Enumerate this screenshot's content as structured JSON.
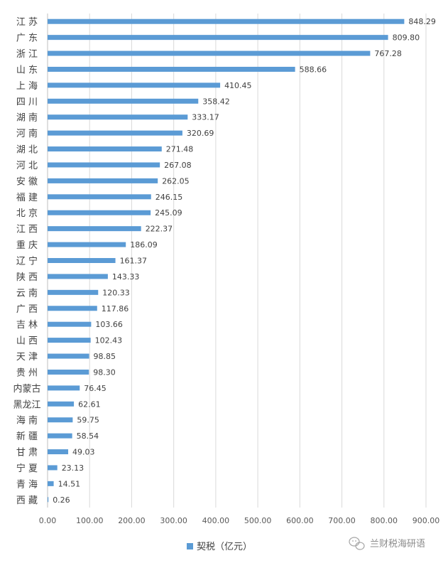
{
  "chart_data": {
    "type": "bar",
    "orientation": "horizontal",
    "categories": [
      "江 苏",
      "广 东",
      "浙 江",
      "山 东",
      "上 海",
      "四 川",
      "湖 南",
      "河 南",
      "湖 北",
      "河 北",
      "安 徽",
      "福 建",
      "北 京",
      "江 西",
      "重 庆",
      "辽 宁",
      "陕 西",
      "云 南",
      "广 西",
      "吉 林",
      "山 西",
      "天 津",
      "贵 州",
      "内蒙古",
      "黑龙江",
      "海 南",
      "新 疆",
      "甘 肃",
      "宁 夏",
      "青 海",
      "西 藏"
    ],
    "series": [
      {
        "name": "契税（亿元）",
        "values": [
          848.29,
          809.8,
          767.28,
          588.66,
          410.45,
          358.42,
          333.17,
          320.69,
          271.48,
          267.08,
          262.05,
          246.15,
          245.09,
          222.37,
          186.09,
          161.37,
          143.33,
          120.33,
          117.86,
          103.66,
          102.43,
          98.85,
          98.3,
          76.45,
          62.61,
          59.75,
          58.54,
          49.03,
          23.13,
          14.51,
          0.26
        ],
        "data_labels": [
          "848.29",
          "809.80",
          "767.28",
          "588.66",
          "410.45",
          "358.42",
          "333.17",
          "320.69",
          "271.48",
          "267.08",
          "262.05",
          "246.15",
          "245.09",
          "222.37",
          "186.09",
          "161.37",
          "143.33",
          "120.33",
          "117.86",
          "103.66",
          "102.43",
          "98.85",
          "98.30",
          "76.45",
          "62.61",
          "59.75",
          "58.54",
          "49.03",
          "23.13",
          "14.51",
          "0.26"
        ]
      }
    ],
    "x_ticks": [
      "0.00",
      "100.00",
      "200.00",
      "300.00",
      "400.00",
      "500.00",
      "600.00",
      "700.00",
      "800.00",
      "900.00"
    ],
    "xlim": [
      0,
      900
    ],
    "grid": true,
    "legend_position": "bottom",
    "colors": {
      "bar": "#5b9bd5",
      "grid": "#d9d9d9",
      "axis": "#bfbfbf"
    }
  },
  "watermark": {
    "text": "兰财税海研语",
    "icon": "wechat-icon"
  }
}
